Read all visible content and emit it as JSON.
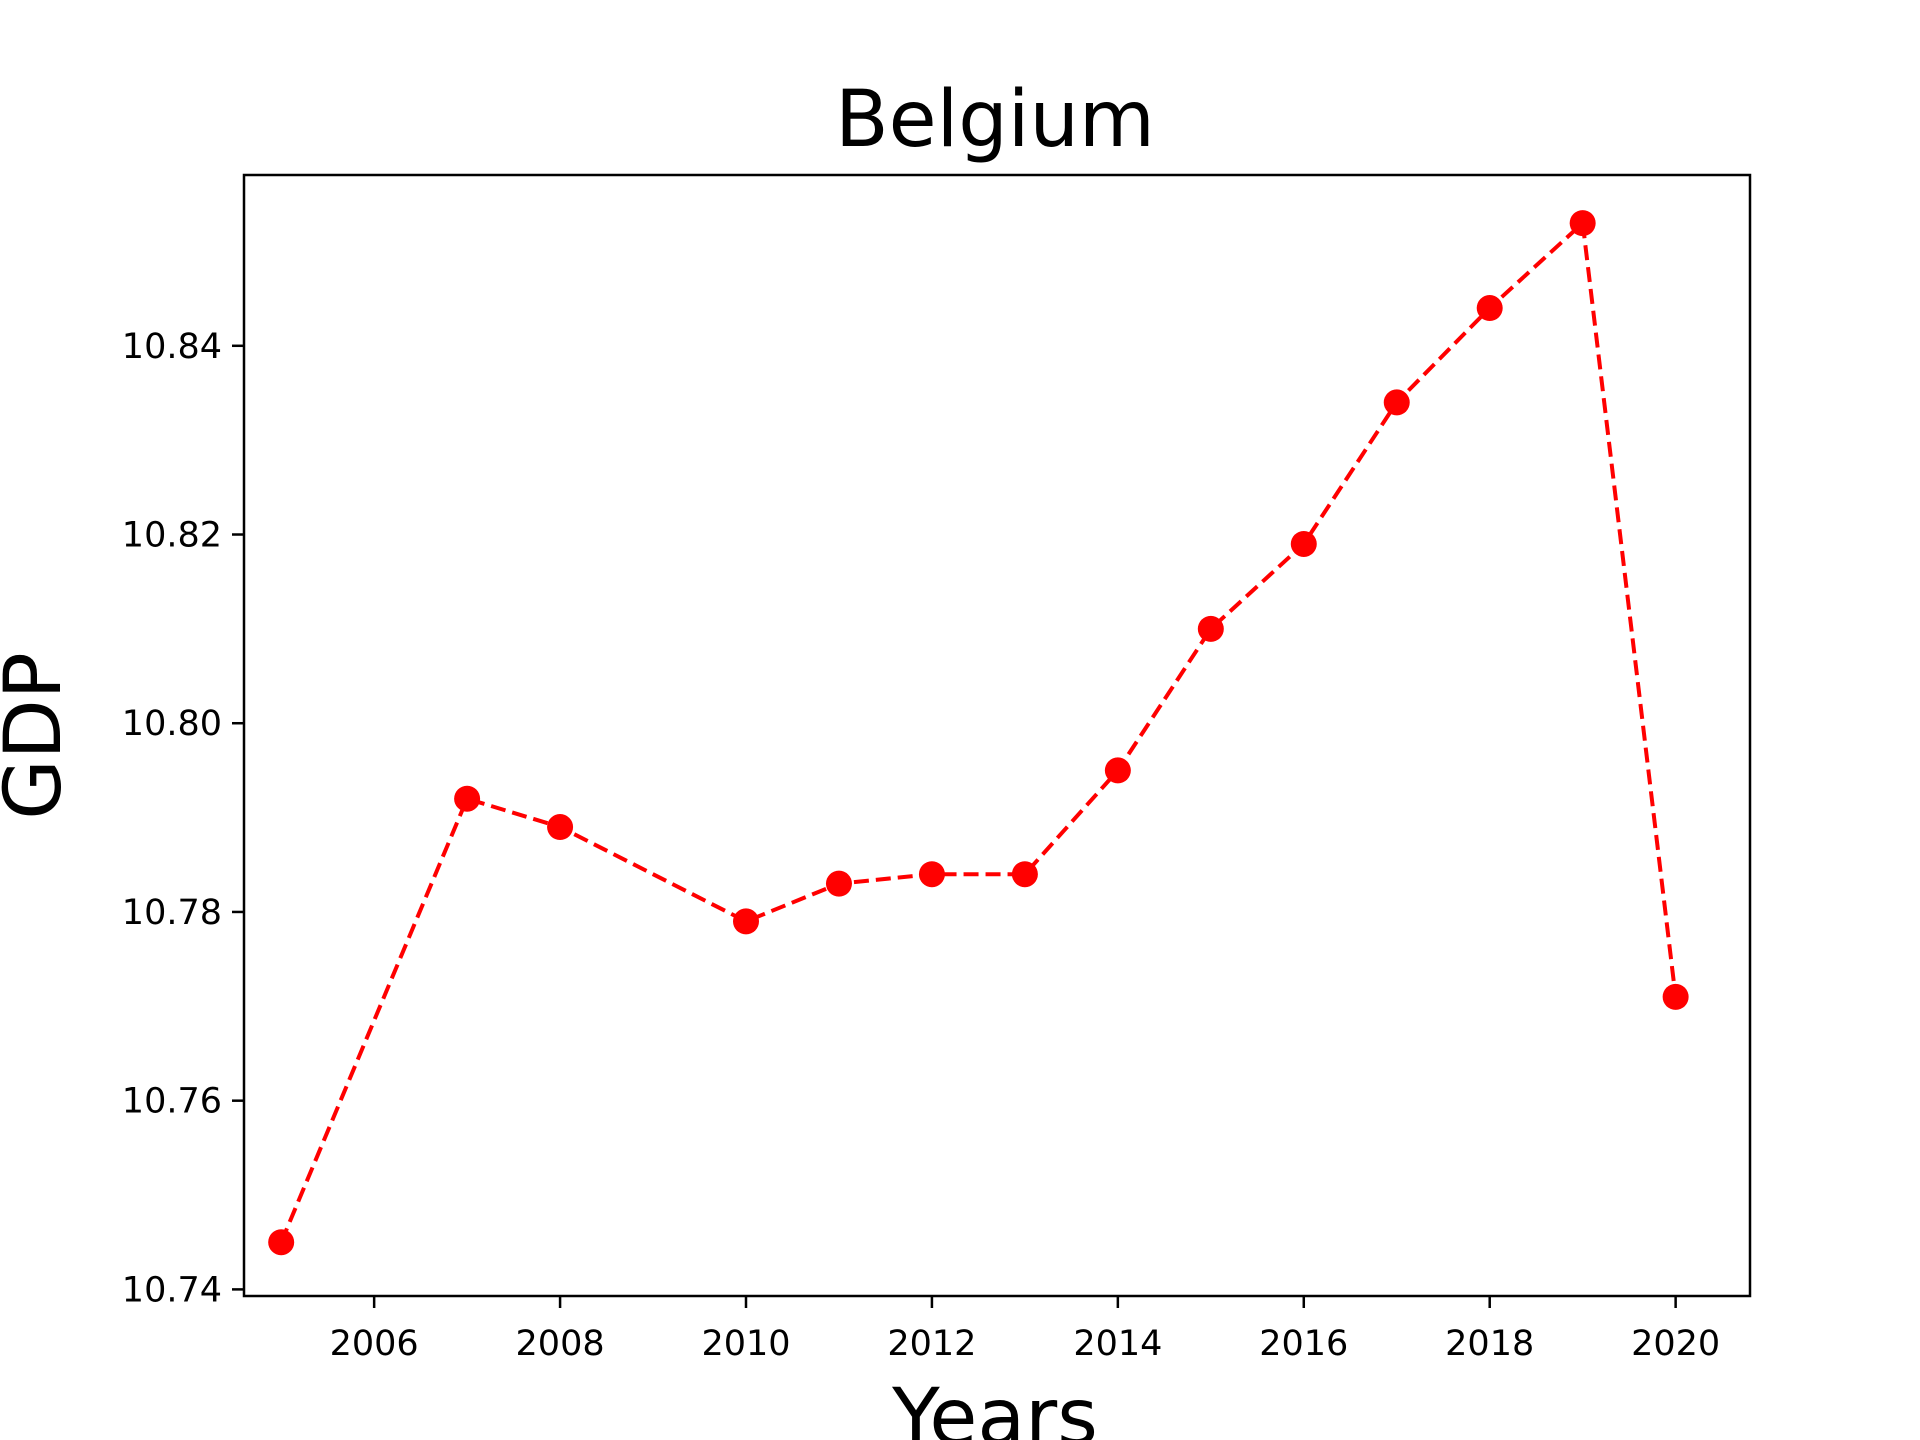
{
  "chart_data": {
    "type": "line",
    "title": "Belgium",
    "xlabel": "Years",
    "ylabel": "GDP",
    "xlim": [
      2004.6,
      2020.8
    ],
    "ylim": [
      10.7393,
      10.8581
    ],
    "xticks": [
      2006,
      2008,
      2010,
      2012,
      2014,
      2016,
      2018,
      2020
    ],
    "xtick_labels": [
      "2006",
      "2008",
      "2010",
      "2012",
      "2014",
      "2016",
      "2018",
      "2020"
    ],
    "yticks": [
      10.74,
      10.76,
      10.78,
      10.8,
      10.82,
      10.84
    ],
    "ytick_labels": [
      "10.74",
      "10.76",
      "10.78",
      "10.80",
      "10.82",
      "10.84"
    ],
    "grid": false,
    "legend": "none",
    "series": [
      {
        "color": "#ff0000",
        "line_style": "dashed",
        "marker": "circle",
        "x": [
          2005,
          2007,
          2008,
          2010,
          2011,
          2012,
          2013,
          2014,
          2015,
          2016,
          2017,
          2018,
          2019,
          2020
        ],
        "y": [
          10.745,
          10.792,
          10.789,
          10.779,
          10.783,
          10.784,
          10.784,
          10.795,
          10.81,
          10.819,
          10.834,
          10.844,
          10.853,
          10.771
        ]
      }
    ]
  }
}
